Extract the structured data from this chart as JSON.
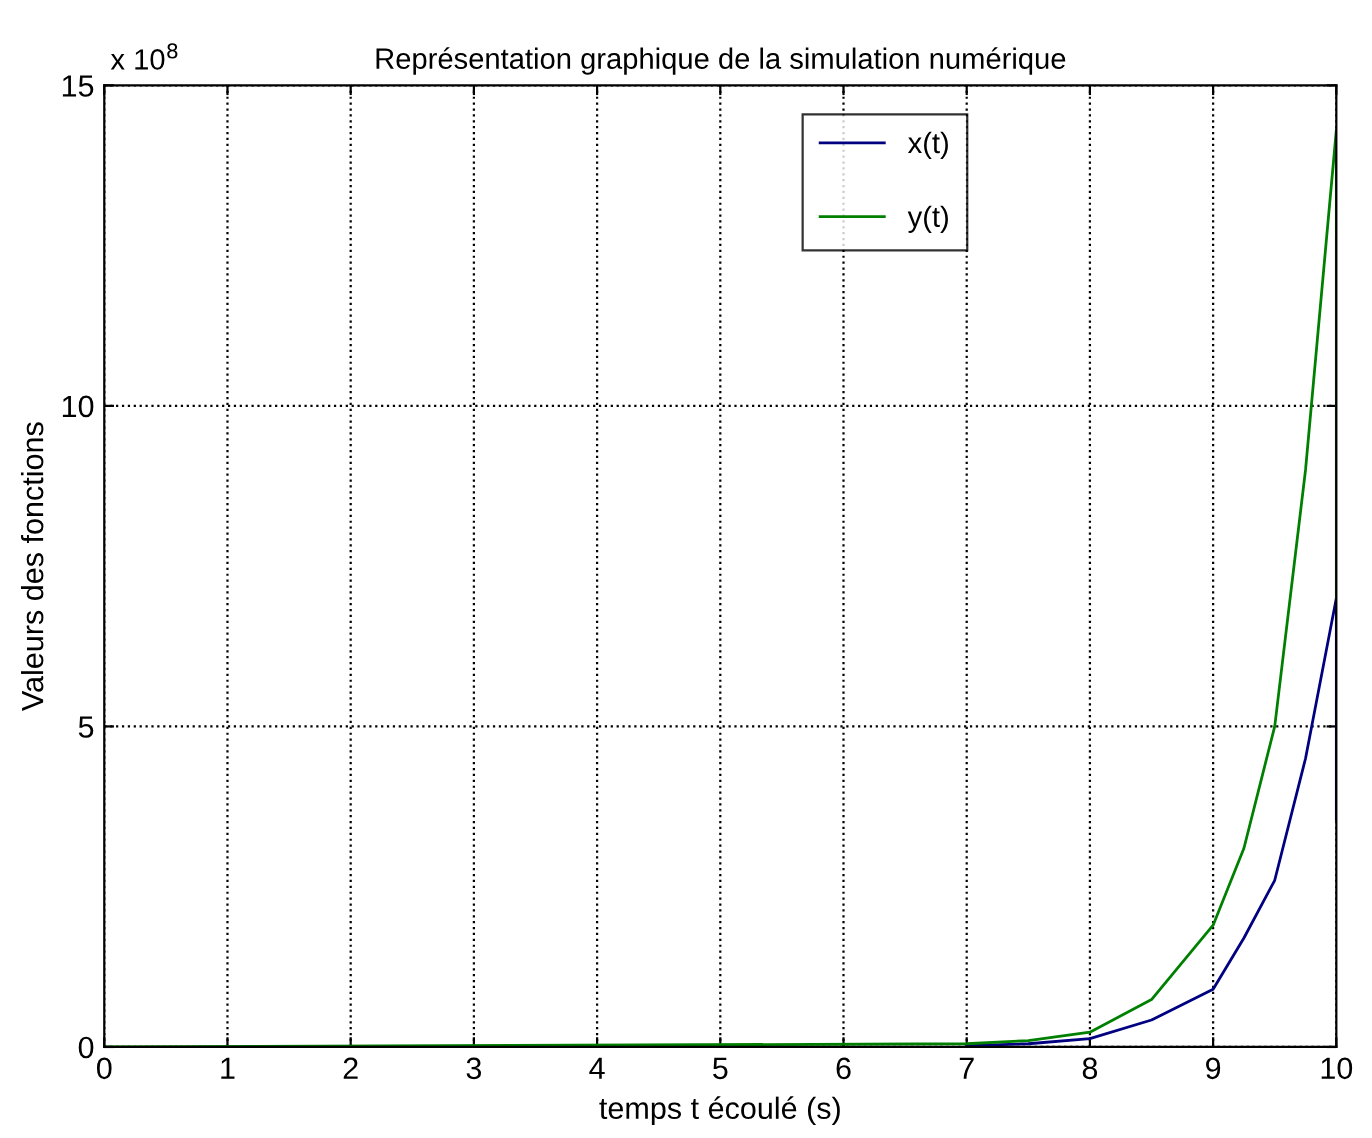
{
  "chart_data": {
    "type": "line",
    "title": "Représentation graphique de la simulation numérique",
    "xlabel": "temps t écoulé (s)",
    "ylabel": "Valeurs des fonctions",
    "annotations": [
      "x 10$^{8}$"
    ],
    "x": [
      0,
      7,
      7.5,
      8,
      8.5,
      9,
      9.25,
      9.5,
      9.75,
      10,
      10
    ],
    "series": [
      {
        "name": "x(t)",
        "color": "#000080",
        "values": [
          null,
          0.02,
          0.05,
          0.13,
          0.42,
          0.9,
          1.7,
          2.6,
          4.5,
          7.0,
          3.55
        ]
      },
      {
        "name": "y(t)",
        "color": "#008000",
        "values": [
          0,
          0.05,
          0.1,
          0.23,
          0.74,
          1.9,
          3.1,
          5.0,
          9.0,
          14.3,
          7.0
        ]
      }
    ],
    "xlim": [
      0,
      10
    ],
    "xticks": [
      0,
      1,
      2,
      3,
      4,
      5,
      6,
      7,
      8,
      9,
      10
    ],
    "ylim": [
      0,
      15
    ],
    "yticks": [
      0,
      5,
      10,
      15
    ],
    "grid": true,
    "legend": "top right",
    "line_style": "solid"
  }
}
